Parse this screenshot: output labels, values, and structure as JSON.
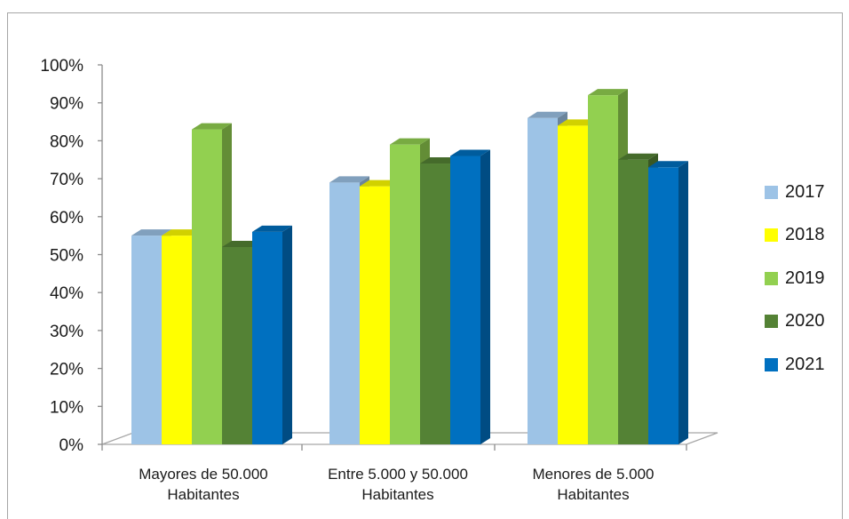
{
  "chart_data": {
    "type": "bar",
    "categories": [
      "Mayores de 50.000 Habitantes",
      "Entre 5.000 y 50.000 Habitantes",
      "Menores de 5.000 Habitantes"
    ],
    "category_lines": [
      [
        "Mayores de 50.000",
        "Habitantes"
      ],
      [
        "Entre 5.000 y 50.000",
        "Habitantes"
      ],
      [
        "Menores de 5.000",
        "Habitantes"
      ]
    ],
    "series": [
      {
        "name": "2017",
        "color": "#9dc3e6",
        "values": [
          55,
          69,
          86
        ]
      },
      {
        "name": "2018",
        "color": "#ffff00",
        "values": [
          55,
          68,
          84
        ]
      },
      {
        "name": "2019",
        "color": "#92d050",
        "values": [
          83,
          79,
          92
        ]
      },
      {
        "name": "2020",
        "color": "#548235",
        "values": [
          52,
          74,
          75
        ]
      },
      {
        "name": "2021",
        "color": "#0070c0",
        "values": [
          56,
          76,
          73
        ]
      }
    ],
    "ylim": [
      0,
      100
    ],
    "yticks": [
      "0%",
      "10%",
      "20%",
      "30%",
      "40%",
      "50%",
      "60%",
      "70%",
      "80%",
      "90%",
      "100%"
    ],
    "three_d": true,
    "grid": false,
    "legend_position": "right",
    "title": "",
    "xlabel": "",
    "ylabel": ""
  }
}
